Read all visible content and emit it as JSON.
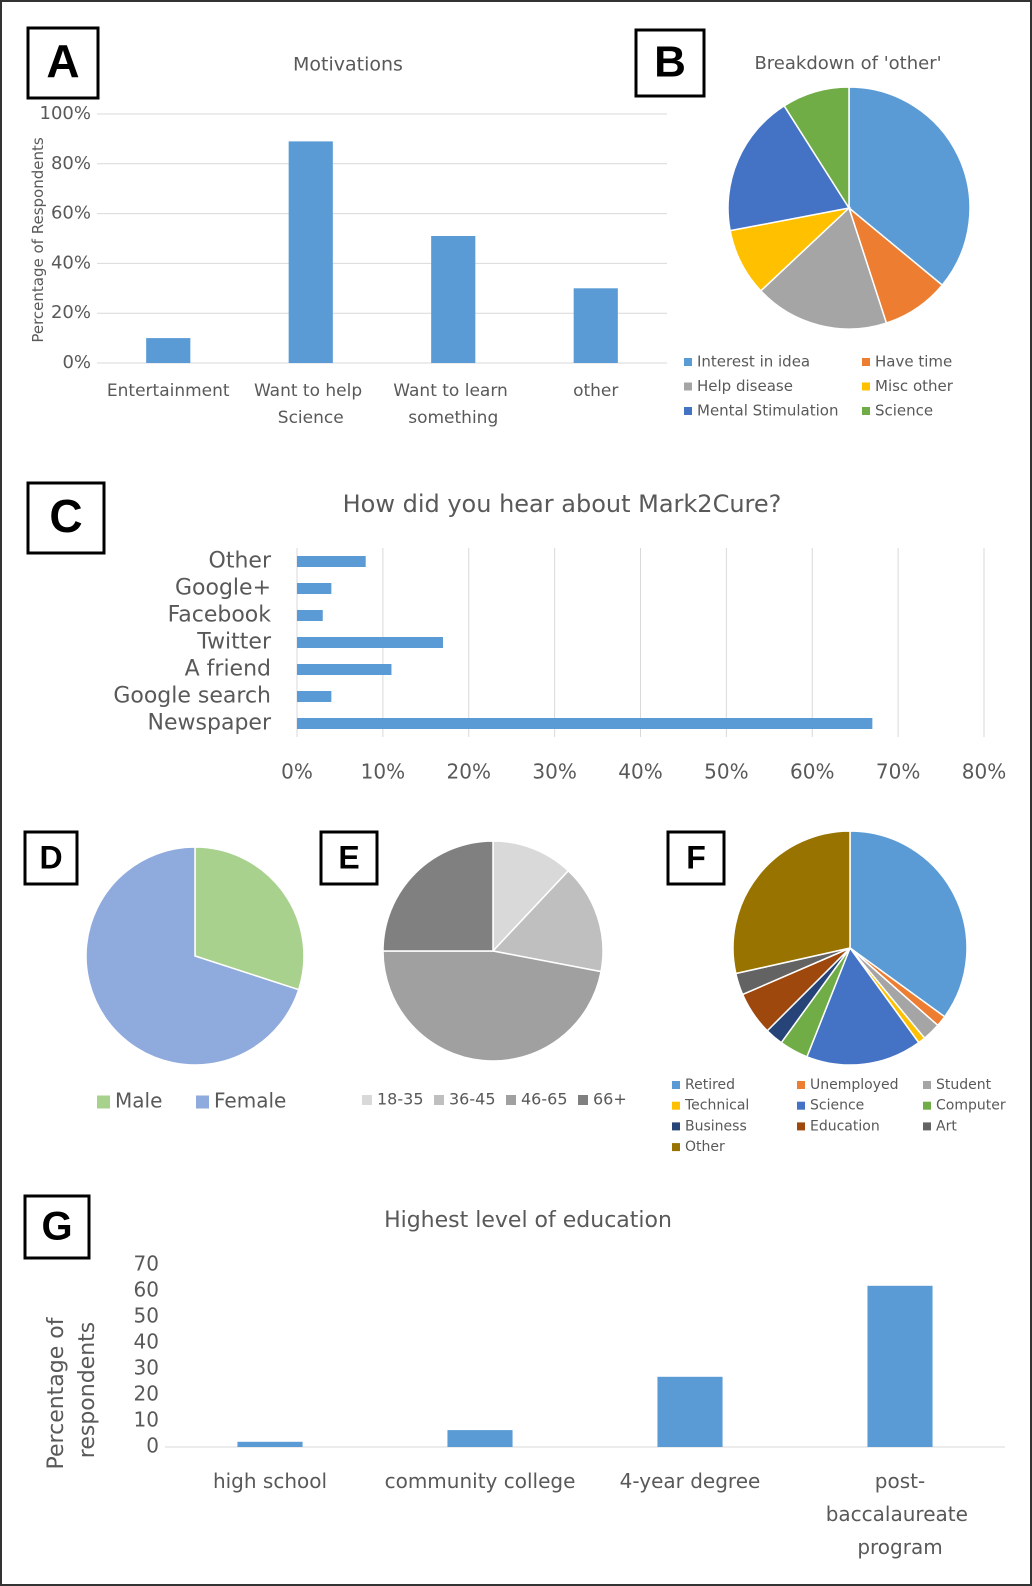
{
  "chart_data": [
    {
      "panel": "A",
      "type": "bar",
      "title": "Motivations",
      "y_label": "Percentage of Respondents",
      "categories": [
        "Entertainment",
        "Want to help Science",
        "Want to learn something",
        "other"
      ],
      "values": [
        10,
        89,
        51,
        30
      ],
      "color": "#5b9bd5",
      "ylim": [
        0,
        100
      ],
      "yticks": [
        {
          "value": 0,
          "label": "0%"
        },
        {
          "value": 20,
          "label": "20%"
        },
        {
          "value": 40,
          "label": "40%"
        },
        {
          "value": 60,
          "label": "60%"
        },
        {
          "value": 80,
          "label": "80%"
        },
        {
          "value": 100,
          "label": "100%"
        }
      ],
      "grid": true
    },
    {
      "panel": "B",
      "type": "pie",
      "title": "Breakdown of 'other'",
      "categories": [
        "Interest in idea",
        "Have time",
        "Help disease",
        "Misc other",
        "Mental Stimulation",
        "Science"
      ],
      "values": [
        36,
        9,
        18,
        9,
        19,
        9
      ],
      "colors": [
        "#5b9bd5",
        "#ed7d31",
        "#a5a5a5",
        "#ffc000",
        "#4472c4",
        "#70ad47"
      ],
      "legend": "bottom"
    },
    {
      "panel": "C",
      "type": "barh",
      "title": "How did you hear about Mark2Cure?",
      "categories": [
        "Other",
        "Google+",
        "Facebook",
        "Twitter",
        "A friend",
        "Google search",
        "Newspaper"
      ],
      "values": [
        8,
        4,
        3,
        17,
        11,
        4,
        67
      ],
      "color": "#5b9bd5",
      "xlim": [
        0,
        80
      ],
      "xticks": [
        {
          "value": 0,
          "label": "0%"
        },
        {
          "value": 10,
          "label": "10%"
        },
        {
          "value": 20,
          "label": "20%"
        },
        {
          "value": 30,
          "label": "30%"
        },
        {
          "value": 40,
          "label": "40%"
        },
        {
          "value": 50,
          "label": "50%"
        },
        {
          "value": 60,
          "label": "60%"
        },
        {
          "value": 70,
          "label": "70%"
        },
        {
          "value": 80,
          "label": "80%"
        }
      ],
      "grid": true
    },
    {
      "panel": "D",
      "type": "pie",
      "categories": [
        "Male",
        "Female"
      ],
      "values": [
        30,
        70
      ],
      "colors": [
        "#a9d18e",
        "#8faadc"
      ],
      "legend": "bottom"
    },
    {
      "panel": "E",
      "type": "pie",
      "categories": [
        "18-35",
        "36-45",
        "46-65",
        "66+"
      ],
      "values": [
        12,
        16,
        47,
        25
      ],
      "colors": [
        "#d9d9d9",
        "#bfbfbf",
        "#a0a0a0",
        "#808080"
      ],
      "legend": "bottom"
    },
    {
      "panel": "F",
      "type": "pie",
      "categories": [
        "Retired",
        "Unemployed",
        "Student",
        "Technical",
        "Science",
        "Computer",
        "Business",
        "Education",
        "Art",
        "Other"
      ],
      "values": [
        35,
        1.5,
        2.5,
        1,
        16,
        4,
        2.5,
        6,
        3,
        28.5
      ],
      "colors": [
        "#5b9bd5",
        "#ed7d31",
        "#a5a5a5",
        "#ffc000",
        "#4472c4",
        "#70ad47",
        "#264478",
        "#9e480e",
        "#636363",
        "#997300"
      ],
      "legend": "bottom"
    },
    {
      "panel": "G",
      "type": "bar",
      "title": "Highest level of education",
      "y_label": "Percentage of respondents",
      "categories": [
        "high school",
        "community college",
        "4-year degree",
        "post-baccalaureate program"
      ],
      "values": [
        2,
        6.5,
        27,
        62
      ],
      "color": "#5b9bd5",
      "ylim": [
        0,
        70
      ],
      "yticks": [
        0,
        10,
        20,
        30,
        40,
        50,
        60,
        70
      ],
      "grid": false
    }
  ]
}
